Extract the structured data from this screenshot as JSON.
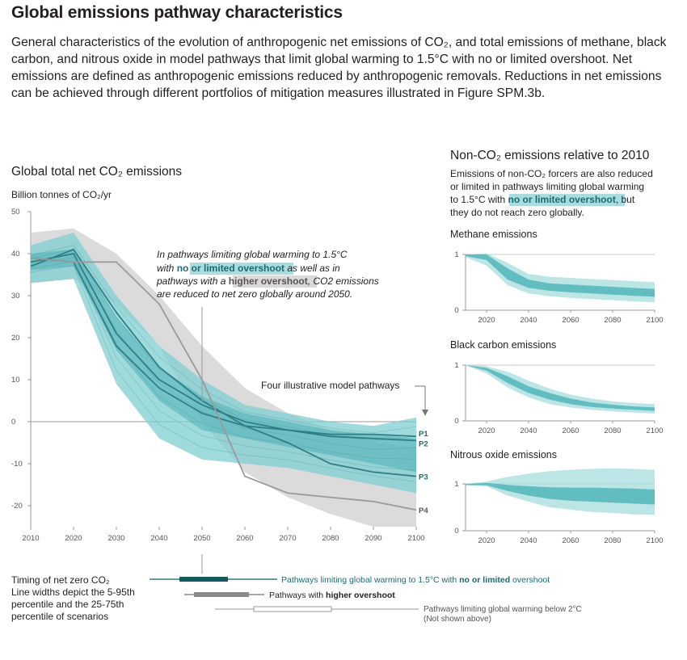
{
  "header": {
    "title": "Global emissions pathway characteristics",
    "intro": "General characteristics of the evolution of anthropogenic net emissions of CO₂, and total emissions of methane, black carbon, and nitrous oxide in model pathways that limit global warming to 1.5°C with no or limited overshoot. Net emissions are defined as anthropogenic emissions reduced by anthropogenic removals. Reductions in net emissions can be achieved through different portfolios of mitigation measures illustrated in Figure SPM.3b."
  },
  "colors": {
    "teal_band": "#7fcdd0",
    "teal_dark": "#2f7f86",
    "grey_band": "#cfcfcf",
    "grey_line": "#9a9a9a",
    "label_teal": "#1c6b73"
  },
  "chart_data": [
    {
      "type": "line",
      "title": "Global total net CO₂ emissions",
      "ylabel": "Billion tonnes of CO₂/yr",
      "xlim": [
        2010,
        2100
      ],
      "ylim": [
        -25,
        50
      ],
      "xticks": [
        "2010",
        "2020",
        "2030",
        "2040",
        "2050",
        "2060",
        "2070",
        "2080",
        "2090",
        "2100"
      ],
      "yticks": [
        "50",
        "40",
        "30",
        "20",
        "10",
        "0",
        "-10",
        "-20"
      ],
      "grid": false,
      "x": [
        2010,
        2020,
        2030,
        2040,
        2050,
        2060,
        2070,
        2080,
        2090,
        2100
      ],
      "bands": [
        {
          "group": "higher overshoot 5-95",
          "lower": [
            33,
            34,
            28,
            18,
            0,
            -12,
            -18,
            -22,
            -25,
            -25
          ],
          "upper": [
            45,
            46,
            40,
            30,
            18,
            8,
            2,
            -2,
            -5,
            -6
          ]
        },
        {
          "group": "1.5°C no or limited overshoot 5-95",
          "lower": [
            33,
            34,
            9,
            -4,
            -9,
            -10,
            -11,
            -13,
            -15,
            -17
          ],
          "upper": [
            42,
            45,
            30,
            18,
            10,
            4,
            2,
            0,
            -1,
            1
          ]
        },
        {
          "group": "1.5°C no or limited overshoot 25-75",
          "lower": [
            36,
            37,
            17,
            5,
            -2,
            -4,
            -6,
            -8,
            -10,
            -12
          ],
          "upper": [
            40,
            41,
            25,
            13,
            6,
            2,
            0,
            -2,
            -3,
            -4
          ]
        }
      ],
      "series": [
        {
          "name": "P1",
          "values": [
            39,
            38,
            18,
            8,
            2,
            -1,
            -2,
            -3,
            -3,
            -3.5
          ]
        },
        {
          "name": "P2",
          "values": [
            38,
            40,
            21,
            10,
            4,
            0,
            -2,
            -3.5,
            -4,
            -4.5
          ]
        },
        {
          "name": "P3",
          "values": [
            37,
            41,
            26,
            13,
            5,
            -1,
            -5,
            -10,
            -12,
            -13
          ]
        },
        {
          "name": "P4",
          "values": [
            39,
            38,
            38,
            28,
            10,
            -13,
            -17,
            -18,
            -19,
            -21
          ]
        }
      ],
      "annotation": {
        "l1_a": "In pathways limiting global warming to 1.5°C",
        "l2_a": "with ",
        "l2_b": "no or limited overshoot",
        "l2_c": " as well as in",
        "l3_a": "pathways with a ",
        "l3_b": "higher overshoot",
        "l3_c": ", CO2 emissions",
        "l4_a": "are reduced to net zero globally around 2050."
      },
      "pathways_label": "Four illustrative model pathways"
    },
    {
      "type": "area",
      "title": "Methane emissions",
      "xticks": [
        "2020",
        "2040",
        "2060",
        "2080",
        "2100"
      ],
      "yticks": [
        "1",
        "0"
      ],
      "x": [
        2010,
        2020,
        2030,
        2040,
        2050,
        2060,
        2070,
        2080,
        2090,
        2100
      ],
      "outer_lower": [
        0.95,
        0.8,
        0.45,
        0.3,
        0.25,
        0.22,
        0.2,
        0.18,
        0.16,
        0.14
      ],
      "outer_upper": [
        1.0,
        1.02,
        0.85,
        0.65,
        0.6,
        0.58,
        0.56,
        0.54,
        0.52,
        0.5
      ],
      "inner_lower": [
        0.97,
        0.9,
        0.55,
        0.4,
        0.35,
        0.32,
        0.3,
        0.28,
        0.26,
        0.24
      ],
      "inner_upper": [
        1.0,
        1.0,
        0.75,
        0.55,
        0.48,
        0.46,
        0.44,
        0.42,
        0.4,
        0.38
      ]
    },
    {
      "type": "area",
      "title": "Black carbon emissions",
      "xticks": [
        "2020",
        "2040",
        "2060",
        "2080",
        "2100"
      ],
      "yticks": [
        "1",
        "0"
      ],
      "x": [
        2010,
        2020,
        2030,
        2040,
        2050,
        2060,
        2070,
        2080,
        2090,
        2100
      ],
      "outer_lower": [
        1.0,
        0.85,
        0.6,
        0.42,
        0.3,
        0.24,
        0.2,
        0.17,
        0.15,
        0.13
      ],
      "outer_upper": [
        1.0,
        0.98,
        0.88,
        0.72,
        0.58,
        0.47,
        0.4,
        0.35,
        0.32,
        0.3
      ],
      "inner_lower": [
        1.0,
        0.9,
        0.68,
        0.5,
        0.38,
        0.3,
        0.25,
        0.22,
        0.2,
        0.18
      ],
      "inner_upper": [
        1.0,
        0.95,
        0.8,
        0.62,
        0.5,
        0.4,
        0.33,
        0.29,
        0.26,
        0.24
      ]
    },
    {
      "type": "area",
      "title": "Nitrous oxide emissions",
      "xticks": [
        "2020",
        "2040",
        "2060",
        "2080",
        "2100"
      ],
      "yticks": [
        "1",
        "0"
      ],
      "x": [
        2010,
        2020,
        2030,
        2040,
        2050,
        2060,
        2070,
        2080,
        2090,
        2100
      ],
      "outer_lower": [
        0.97,
        0.95,
        0.75,
        0.62,
        0.5,
        0.45,
        0.4,
        0.38,
        0.35,
        0.34
      ],
      "outer_upper": [
        1.0,
        1.05,
        1.15,
        1.22,
        1.27,
        1.3,
        1.32,
        1.33,
        1.32,
        1.3
      ],
      "inner_lower": [
        0.98,
        0.97,
        0.85,
        0.75,
        0.68,
        0.64,
        0.62,
        0.6,
        0.58,
        0.56
      ],
      "inner_upper": [
        1.0,
        1.02,
        0.98,
        0.95,
        0.93,
        0.92,
        0.92,
        0.91,
        0.9,
        0.88
      ]
    }
  ],
  "noncoz": {
    "title": "Non-CO₂ emissions relative to 2010",
    "l1": "Emissions of non-CO₂ forcers are also reduced",
    "l2": "or limited in pathways limiting global warming",
    "l3_a": "to 1.5°C with ",
    "l3_b": "no or limited overshoot",
    "l3_c": ", but",
    "l4": "they do not reach zero globally."
  },
  "legend": {
    "timing_l1": "Timing of net zero CO₂",
    "timing_l2": "Line widths depict the 5-95th",
    "timing_l3": "percentile and the 25-75th",
    "timing_l4": "percentile of scenarios",
    "item1_a": "Pathways limiting global warming to 1.5°C with ",
    "item1_b": "no or limited",
    "item1_c": " overshoot",
    "item2_a": "Pathways with ",
    "item2_b": "higher overshoot",
    "item3_l1": "Pathways limiting global warming below 2°C",
    "item3_l2": "(Not shown above)"
  }
}
